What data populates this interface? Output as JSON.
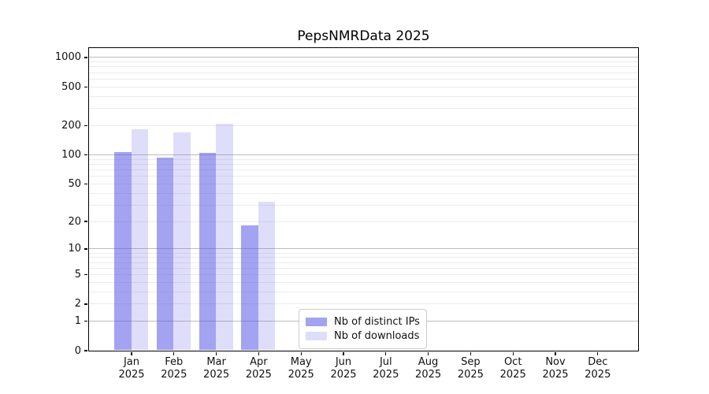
{
  "title": "PepsNMRData 2025",
  "chart_data": {
    "type": "bar",
    "title": "PepsNMRData 2025",
    "categories": [
      "Jan 2025",
      "Feb 2025",
      "Mar 2025",
      "Apr 2025",
      "May 2025",
      "Jun 2025",
      "Jul 2025",
      "Aug 2025",
      "Sep 2025",
      "Oct 2025",
      "Nov 2025",
      "Dec 2025"
    ],
    "x_tick_month": [
      "Jan",
      "Feb",
      "Mar",
      "Apr",
      "May",
      "Jun",
      "Jul",
      "Aug",
      "Sep",
      "Oct",
      "Nov",
      "Dec"
    ],
    "x_tick_year": "2025",
    "series": [
      {
        "name": "Nb of distinct IPs",
        "color": "rgba(88,88,230,0.55)",
        "values": [
          106,
          92,
          104,
          18,
          0,
          0,
          0,
          0,
          0,
          0,
          0,
          0
        ]
      },
      {
        "name": "Nb of downloads",
        "color": "rgba(88,88,230,0.20)",
        "values": [
          182,
          169,
          206,
          32,
          0,
          0,
          0,
          0,
          0,
          0,
          0,
          0
        ]
      }
    ],
    "yticks": [
      0,
      1,
      2,
      5,
      10,
      20,
      50,
      100,
      200,
      500,
      1000
    ],
    "y_scale": "log1p",
    "ylim": [
      0,
      1250
    ],
    "xlabel": "",
    "ylabel": "",
    "grid": true,
    "legend_position": "lower-center"
  },
  "colors": {
    "bar_distinct_ips_rendered": "#a4a4f1",
    "bar_downloads_rendered": "#dedefa",
    "grid_major": "#bdbdbd",
    "grid_minor": "#ececec",
    "axis": "#000000",
    "background": "#ffffff"
  }
}
